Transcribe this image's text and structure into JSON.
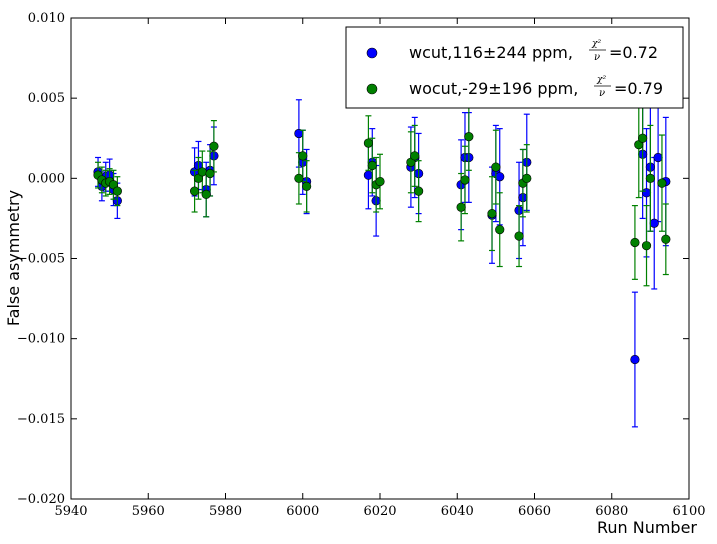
{
  "chart_data": {
    "type": "scatter",
    "title": "",
    "xlabel": "Run Number",
    "ylabel": "False asymmetry",
    "xlim": [
      5940,
      6100
    ],
    "ylim": [
      -0.02,
      0.01
    ],
    "xticks": [
      5940,
      5960,
      5980,
      6000,
      6020,
      6040,
      6060,
      6080,
      6100
    ],
    "yticks": [
      -0.02,
      -0.015,
      -0.01,
      -0.005,
      0.0,
      0.005,
      0.01
    ],
    "xtick_labels": [
      "5940",
      "5960",
      "5980",
      "6000",
      "6020",
      "6040",
      "6060",
      "6080",
      "6100"
    ],
    "ytick_labels": [
      "−0.020",
      "−0.015",
      "−0.010",
      "−0.005",
      "0.000",
      "0.005",
      "0.010"
    ],
    "grid": false,
    "legend_position": "top-right",
    "series": [
      {
        "name": "wcut,116±244 ppm,",
        "chi_label": "=0.72",
        "color": "#0000ff",
        "points": [
          {
            "x": 5947,
            "y": 0.0004,
            "err": 0.0009
          },
          {
            "x": 5948,
            "y": -0.0005,
            "err": 0.0009
          },
          {
            "x": 5949,
            "y": 0.0001,
            "err": 0.0009
          },
          {
            "x": 5950,
            "y": 0.0002,
            "err": 0.001
          },
          {
            "x": 5951,
            "y": -0.0007,
            "err": 0.001
          },
          {
            "x": 5952,
            "y": -0.0014,
            "err": 0.0011
          },
          {
            "x": 5972,
            "y": 0.0004,
            "err": 0.0015
          },
          {
            "x": 5973,
            "y": 0.0008,
            "err": 0.0015
          },
          {
            "x": 5975,
            "y": -0.0007,
            "err": 0.0017
          },
          {
            "x": 5976,
            "y": 0.0005,
            "err": 0.0016
          },
          {
            "x": 5977,
            "y": 0.0014,
            "err": 0.0018
          },
          {
            "x": 5999,
            "y": 0.0028,
            "err": 0.0021
          },
          {
            "x": 6000,
            "y": 0.001,
            "err": 0.002
          },
          {
            "x": 6001,
            "y": -0.0002,
            "err": 0.002
          },
          {
            "x": 6017,
            "y": 0.0002,
            "err": 0.0021
          },
          {
            "x": 6018,
            "y": 0.001,
            "err": 0.0021
          },
          {
            "x": 6019,
            "y": -0.0014,
            "err": 0.0022
          },
          {
            "x": 6028,
            "y": 0.0007,
            "err": 0.0025
          },
          {
            "x": 6029,
            "y": 0.0013,
            "err": 0.0025
          },
          {
            "x": 6030,
            "y": 0.0003,
            "err": 0.0025
          },
          {
            "x": 6041,
            "y": -0.0004,
            "err": 0.0028
          },
          {
            "x": 6042,
            "y": 0.0013,
            "err": 0.0028
          },
          {
            "x": 6043,
            "y": 0.0013,
            "err": 0.0028
          },
          {
            "x": 6049,
            "y": -0.0023,
            "err": 0.003
          },
          {
            "x": 6050,
            "y": 0.0003,
            "err": 0.003
          },
          {
            "x": 6051,
            "y": 0.0001,
            "err": 0.003
          },
          {
            "x": 6056,
            "y": -0.002,
            "err": 0.003
          },
          {
            "x": 6057,
            "y": -0.0012,
            "err": 0.003
          },
          {
            "x": 6058,
            "y": 0.001,
            "err": 0.003
          },
          {
            "x": 6086,
            "y": -0.0113,
            "err": 0.0042
          },
          {
            "x": 6088,
            "y": 0.0015,
            "err": 0.004
          },
          {
            "x": 6089,
            "y": -0.0009,
            "err": 0.004
          },
          {
            "x": 6090,
            "y": 0.0007,
            "err": 0.004
          },
          {
            "x": 6091,
            "y": -0.0028,
            "err": 0.0041
          },
          {
            "x": 6092,
            "y": 0.0013,
            "err": 0.004
          },
          {
            "x": 6094,
            "y": -0.0002,
            "err": 0.004
          }
        ]
      },
      {
        "name": "wocut,-29±196 ppm,",
        "chi_label": "=0.79",
        "color": "#008000",
        "points": [
          {
            "x": 5947,
            "y": 0.0002,
            "err": 0.0008
          },
          {
            "x": 5948,
            "y": -0.0001,
            "err": 0.0008
          },
          {
            "x": 5949,
            "y": -0.0003,
            "err": 0.0008
          },
          {
            "x": 5950,
            "y": -0.0002,
            "err": 0.0008
          },
          {
            "x": 5951,
            "y": -0.0004,
            "err": 0.0009
          },
          {
            "x": 5952,
            "y": -0.0008,
            "err": 0.0009
          },
          {
            "x": 5972,
            "y": -0.0008,
            "err": 0.0013
          },
          {
            "x": 5973,
            "y": 0.0,
            "err": 0.0013
          },
          {
            "x": 5974,
            "y": 0.0004,
            "err": 0.0013
          },
          {
            "x": 5975,
            "y": -0.001,
            "err": 0.0014
          },
          {
            "x": 5976,
            "y": 0.0003,
            "err": 0.0014
          },
          {
            "x": 5977,
            "y": 0.002,
            "err": 0.0016
          },
          {
            "x": 5999,
            "y": 0.0,
            "err": 0.0016
          },
          {
            "x": 6000,
            "y": 0.0014,
            "err": 0.0016
          },
          {
            "x": 6001,
            "y": -0.0005,
            "err": 0.0016
          },
          {
            "x": 6017,
            "y": 0.0022,
            "err": 0.0017
          },
          {
            "x": 6018,
            "y": 0.0008,
            "err": 0.0017
          },
          {
            "x": 6019,
            "y": -0.0004,
            "err": 0.0017
          },
          {
            "x": 6020,
            "y": -0.0002,
            "err": 0.0017
          },
          {
            "x": 6028,
            "y": 0.001,
            "err": 0.0019
          },
          {
            "x": 6029,
            "y": 0.0014,
            "err": 0.0019
          },
          {
            "x": 6030,
            "y": -0.0008,
            "err": 0.0019
          },
          {
            "x": 6041,
            "y": -0.0018,
            "err": 0.0021
          },
          {
            "x": 6042,
            "y": -0.0001,
            "err": 0.0021
          },
          {
            "x": 6043,
            "y": 0.0026,
            "err": 0.0021
          },
          {
            "x": 6049,
            "y": -0.0022,
            "err": 0.0023
          },
          {
            "x": 6050,
            "y": 0.0007,
            "err": 0.0023
          },
          {
            "x": 6051,
            "y": -0.0032,
            "err": 0.0023
          },
          {
            "x": 6056,
            "y": -0.0036,
            "err": 0.0019
          },
          {
            "x": 6057,
            "y": -0.0003,
            "err": 0.0021
          },
          {
            "x": 6058,
            "y": 0.0,
            "err": 0.0021
          },
          {
            "x": 6086,
            "y": -0.004,
            "err": 0.0023
          },
          {
            "x": 6087,
            "y": 0.0021,
            "err": 0.0033
          },
          {
            "x": 6088,
            "y": 0.0025,
            "err": 0.0033
          },
          {
            "x": 6089,
            "y": -0.0042,
            "err": 0.0025
          },
          {
            "x": 6090,
            "y": 0.0,
            "err": 0.0033
          },
          {
            "x": 6093,
            "y": -0.0003,
            "err": 0.003
          },
          {
            "x": 6094,
            "y": -0.0038,
            "err": 0.0022
          }
        ]
      }
    ]
  }
}
